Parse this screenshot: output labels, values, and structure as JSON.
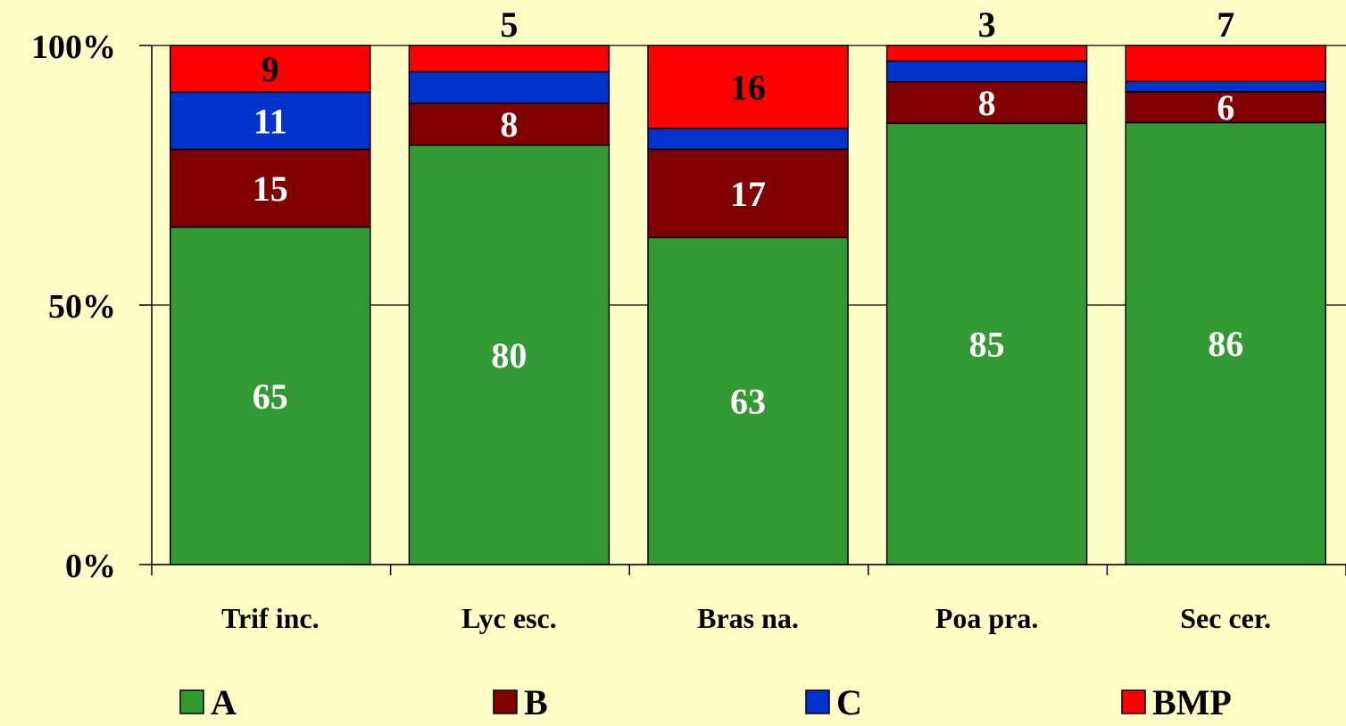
{
  "chart_data": {
    "type": "bar",
    "stacked": true,
    "percent_stacked": true,
    "categories": [
      "Trif inc.",
      "Lyc esc.",
      "Bras na.",
      "Poa pra.",
      "Sec cer."
    ],
    "series": [
      {
        "name": "A",
        "color": "#339933",
        "values": [
          65,
          80,
          63,
          85,
          86
        ]
      },
      {
        "name": "B",
        "color": "#800000",
        "values": [
          15,
          8,
          17,
          8,
          6
        ]
      },
      {
        "name": "C",
        "color": "#0033CC",
        "values": [
          11,
          6,
          4,
          4,
          2
        ]
      },
      {
        "name": "BMP",
        "color": "#FF0000",
        "values": [
          9,
          5,
          16,
          3,
          7
        ]
      }
    ],
    "data_labels": {
      "A": [
        "65",
        "80",
        "63",
        "85",
        "86"
      ],
      "B": [
        "15",
        "8",
        "17",
        "8",
        "6"
      ],
      "C": [
        "11",
        "",
        "",
        "",
        ""
      ],
      "BMP": [
        "9",
        "",
        "16",
        "",
        ""
      ]
    },
    "top_labels": [
      "",
      "5",
      "",
      "3",
      "7"
    ],
    "y_ticks": [
      "0%",
      "50%",
      "100%"
    ],
    "ylim": [
      0,
      100
    ],
    "grid": true,
    "legend_position": "bottom",
    "colors": {
      "background": "#FFFFC8",
      "label_light": "#FFFFFF",
      "label_dark": "#000000"
    }
  }
}
